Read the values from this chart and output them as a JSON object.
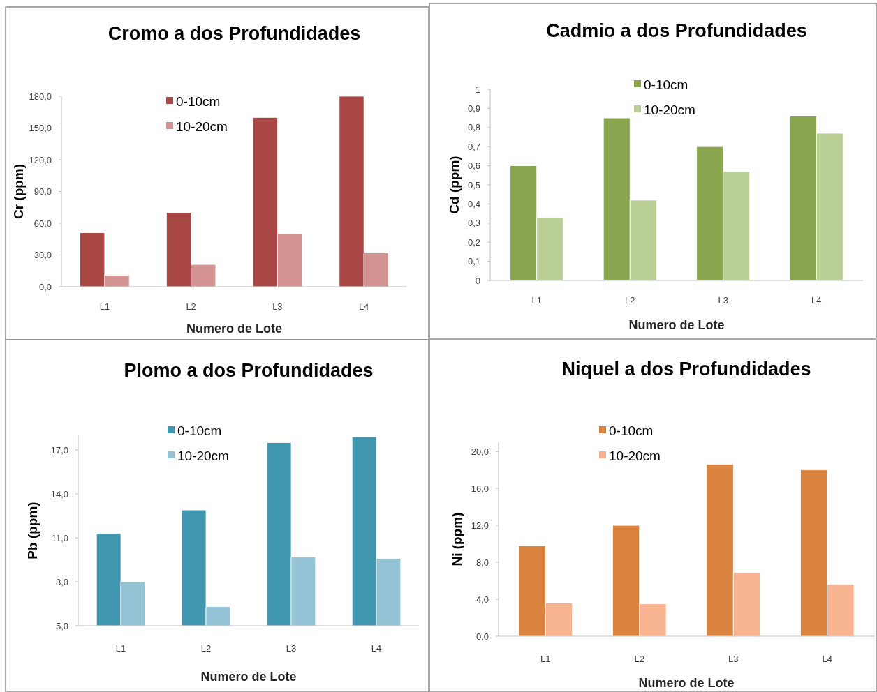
{
  "chart_data": [
    {
      "type": "bar",
      "title": "Cromo a dos Profundidades",
      "xlabel": "Numero  de Lote",
      "ylabel": "Cr (ppm)",
      "categories": [
        "L1",
        "L2",
        "L3",
        "L4"
      ],
      "legend": "top",
      "series": [
        {
          "name": "0-10cm",
          "color": "#a94745",
          "values": [
            51,
            70,
            160,
            180
          ]
        },
        {
          "name": "10-20cm",
          "color": "#d39392",
          "values": [
            11,
            21,
            50,
            32
          ]
        }
      ],
      "ylim": [
        0,
        180
      ],
      "yticks": [
        {
          "value": 0,
          "label": "0,0"
        },
        {
          "value": 30,
          "label": "30,0"
        },
        {
          "value": 60,
          "label": "60,0"
        },
        {
          "value": 90,
          "label": "90,0"
        },
        {
          "value": 120,
          "label": "120,0"
        },
        {
          "value": 150,
          "label": "150,0"
        },
        {
          "value": 180,
          "label": "180,0"
        }
      ]
    },
    {
      "type": "bar",
      "title": "Cadmio a dos Profundidades",
      "xlabel": "Numero  de Lote",
      "ylabel": "Cd (ppm)",
      "categories": [
        "L1",
        "L2",
        "L3",
        "L4"
      ],
      "legend": "top",
      "series": [
        {
          "name": "0-10cm",
          "color": "#8aa64f",
          "values": [
            0.6,
            0.85,
            0.7,
            0.86
          ]
        },
        {
          "name": "10-20cm",
          "color": "#bacf96",
          "values": [
            0.33,
            0.42,
            0.57,
            0.77
          ]
        }
      ],
      "ylim": [
        0,
        1
      ],
      "yticks": [
        0,
        {
          "value": 0.1,
          "label": "0,1"
        },
        {
          "value": 0.2,
          "label": "0,2"
        },
        {
          "value": 0.3,
          "label": "0,3"
        },
        {
          "value": 0.4,
          "label": "0,4"
        },
        {
          "value": 0.5,
          "label": "0,5"
        },
        {
          "value": 0.6,
          "label": "0,6"
        },
        {
          "value": 0.7,
          "label": "0,7"
        },
        {
          "value": 0.8,
          "label": "0,8"
        },
        {
          "value": 0.9,
          "label": "0,9"
        },
        1
      ]
    },
    {
      "type": "bar",
      "title": "Plomo a dos Profundidades",
      "xlabel": "Numero  de Lote",
      "ylabel": "Pb (ppm)",
      "categories": [
        "L1",
        "L2",
        "L3",
        "L4"
      ],
      "legend": "top",
      "series": [
        {
          "name": "0-10cm",
          "color": "#4197b0",
          "values": [
            11.3,
            12.9,
            17.5,
            17.9
          ]
        },
        {
          "name": "10-20cm",
          "color": "#93c3d5",
          "values": [
            8.0,
            6.3,
            9.7,
            9.6
          ]
        }
      ],
      "ylim": [
        5,
        18
      ],
      "yticks": [
        {
          "value": 5,
          "label": "5,0"
        },
        {
          "value": 8,
          "label": "8,0"
        },
        {
          "value": 11,
          "label": "11,0"
        },
        {
          "value": 14,
          "label": "14,0"
        },
        {
          "value": 17,
          "label": "17,0"
        }
      ]
    },
    {
      "type": "bar",
      "title": "Niquel a dos Profundidades",
      "xlabel": "Numero  de Lote",
      "ylabel": "Ni (ppm)",
      "categories": [
        "L1",
        "L2",
        "L3",
        "L4"
      ],
      "legend": "top",
      "series": [
        {
          "name": "0-10cm",
          "color": "#db843f",
          "values": [
            9.8,
            12.0,
            18.6,
            18.0
          ]
        },
        {
          "name": "10-20cm",
          "color": "#f8b491",
          "values": [
            3.6,
            3.5,
            6.9,
            5.6
          ]
        }
      ],
      "ylim": [
        0,
        21
      ],
      "yticks": [
        {
          "value": 0,
          "label": "0,0"
        },
        {
          "value": 4,
          "label": "4,0"
        },
        {
          "value": 8,
          "label": "8,0"
        },
        {
          "value": 12,
          "label": "12,0"
        },
        {
          "value": 16,
          "label": "16,0"
        },
        {
          "value": 20,
          "label": "20,0"
        }
      ]
    }
  ]
}
